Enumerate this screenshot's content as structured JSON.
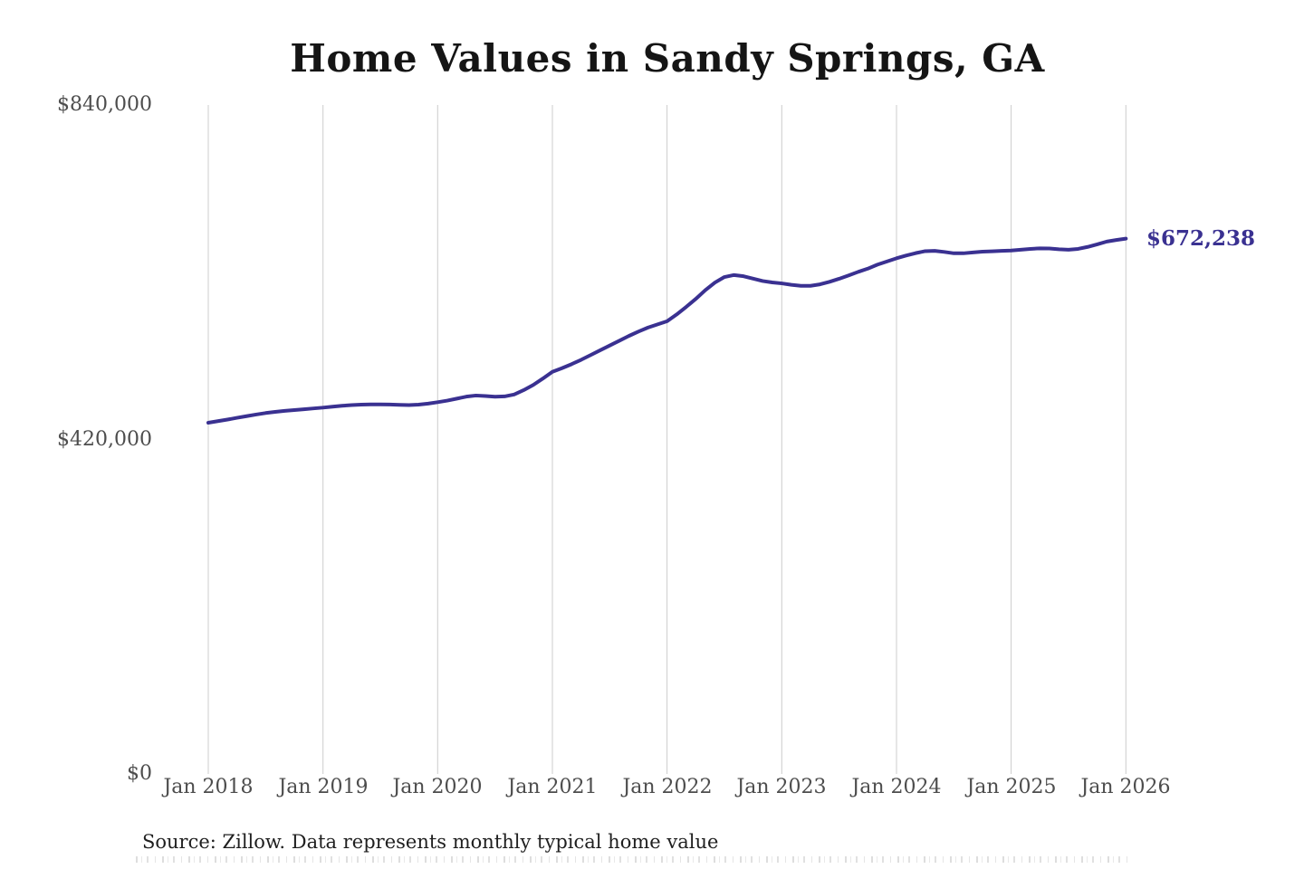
{
  "chart_data": {
    "type": "line",
    "title": "Home Values in Sandy Springs, GA",
    "source": "Source: Zillow. Data represents monthly typical home value",
    "end_label": "$672,238",
    "end_value": 672238,
    "ylim": [
      0,
      840000
    ],
    "grid": "vertical-only",
    "legend": "none",
    "line_color": "#3a3191",
    "grid_color": "#cccccc",
    "tick_label_color": "#4d4d4d",
    "y_ticks": [
      {
        "label": "$0",
        "value": 0
      },
      {
        "label": "$420,000",
        "value": 420000
      },
      {
        "label": "$840,000",
        "value": 840000
      }
    ],
    "x_ticks": [
      "Jan 2018",
      "Jan 2019",
      "Jan 2020",
      "Jan 2021",
      "Jan 2022",
      "Jan 2023",
      "Jan 2024",
      "Jan 2025",
      "Jan 2026"
    ],
    "x": [
      "2018-01",
      "2018-02",
      "2018-03",
      "2018-04",
      "2018-05",
      "2018-06",
      "2018-07",
      "2018-08",
      "2018-09",
      "2018-10",
      "2018-11",
      "2018-12",
      "2019-01",
      "2019-02",
      "2019-03",
      "2019-04",
      "2019-05",
      "2019-06",
      "2019-07",
      "2019-08",
      "2019-09",
      "2019-10",
      "2019-11",
      "2019-12",
      "2020-01",
      "2020-02",
      "2020-03",
      "2020-04",
      "2020-05",
      "2020-06",
      "2020-07",
      "2020-08",
      "2020-09",
      "2020-10",
      "2020-11",
      "2020-12",
      "2021-01",
      "2021-02",
      "2021-03",
      "2021-04",
      "2021-05",
      "2021-06",
      "2021-07",
      "2021-08",
      "2021-09",
      "2021-10",
      "2021-11",
      "2021-12",
      "2022-01",
      "2022-02",
      "2022-03",
      "2022-04",
      "2022-05",
      "2022-06",
      "2022-07",
      "2022-08",
      "2022-09",
      "2022-10",
      "2022-11",
      "2022-12",
      "2023-01",
      "2023-02",
      "2023-03",
      "2023-04",
      "2023-05",
      "2023-06",
      "2023-07",
      "2023-08",
      "2023-09",
      "2023-10",
      "2023-11",
      "2023-12",
      "2024-01",
      "2024-02",
      "2024-03",
      "2024-04",
      "2024-05",
      "2024-06",
      "2024-07",
      "2024-08",
      "2024-09",
      "2024-10",
      "2024-11",
      "2024-12",
      "2025-01",
      "2025-02",
      "2025-03",
      "2025-04",
      "2025-05",
      "2025-06",
      "2025-07",
      "2025-08",
      "2025-09",
      "2025-10",
      "2025-11",
      "2025-12",
      "2026-01"
    ],
    "values": [
      441000,
      443000,
      445000,
      447200,
      449300,
      451300,
      453200,
      454700,
      456000,
      457000,
      458000,
      459000,
      460000,
      461200,
      462300,
      463200,
      463800,
      464100,
      464100,
      463900,
      463500,
      463200,
      463800,
      465000,
      466800,
      468800,
      471300,
      473800,
      475200,
      474600,
      473700,
      474100,
      476500,
      482000,
      488500,
      496500,
      505000,
      509500,
      514500,
      520000,
      526000,
      532000,
      538000,
      544000,
      550000,
      555500,
      560500,
      564500,
      568500,
      577000,
      586500,
      596500,
      607500,
      617000,
      624000,
      626500,
      625000,
      622000,
      619000,
      617200,
      616000,
      614200,
      613000,
      613000,
      614800,
      618000,
      621800,
      626000,
      630500,
      634500,
      639500,
      643500,
      647500,
      651000,
      654000,
      656500,
      656800,
      655500,
      653800,
      653800,
      654800,
      655800,
      656300,
      656800,
      657300,
      658300,
      659300,
      660000,
      659800,
      658800,
      658300,
      659300,
      661800,
      665000,
      668500,
      670500,
      672238
    ]
  }
}
